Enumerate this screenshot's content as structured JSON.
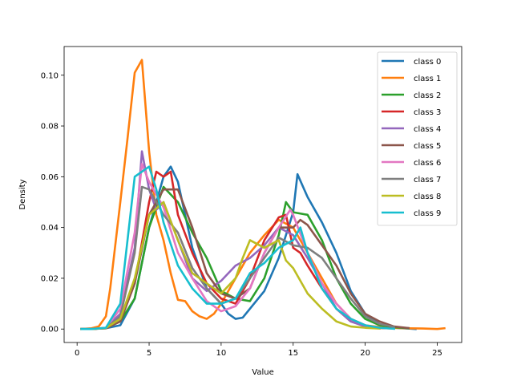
{
  "chart_data": {
    "type": "line",
    "title": "",
    "xlabel": "Value",
    "ylabel": "Density",
    "xlim": [
      -0.9,
      26.7
    ],
    "ylim": [
      -0.0053,
      0.1113
    ],
    "xticks": [
      0,
      5,
      10,
      15,
      20,
      25
    ],
    "yticks": [
      0.0,
      0.02,
      0.04,
      0.06,
      0.08,
      0.1
    ],
    "ytick_labels": [
      "0.00",
      "0.02",
      "0.04",
      "0.06",
      "0.08",
      "0.10"
    ],
    "grid": false,
    "legend_position": "top-right",
    "series": [
      {
        "name": "class 0",
        "color": "#1f77b4",
        "points": [
          [
            0.3,
            0.0
          ],
          [
            1,
            0.0
          ],
          [
            2,
            0.0003
          ],
          [
            3,
            0.0015
          ],
          [
            4,
            0.012
          ],
          [
            5,
            0.04
          ],
          [
            6,
            0.06
          ],
          [
            6.5,
            0.064
          ],
          [
            7,
            0.058
          ],
          [
            8,
            0.032
          ],
          [
            9,
            0.016
          ],
          [
            10,
            0.01
          ],
          [
            10.5,
            0.006
          ],
          [
            11,
            0.004
          ],
          [
            11.5,
            0.0045
          ],
          [
            12,
            0.008
          ],
          [
            13,
            0.015
          ],
          [
            14,
            0.028
          ],
          [
            15,
            0.046
          ],
          [
            15.3,
            0.061
          ],
          [
            16,
            0.052
          ],
          [
            17,
            0.042
          ],
          [
            18,
            0.03
          ],
          [
            19,
            0.015
          ],
          [
            20,
            0.006
          ],
          [
            21,
            0.002
          ],
          [
            22,
            0.0005
          ],
          [
            23,
            0.0002
          ],
          [
            23.5,
            0.0
          ]
        ]
      },
      {
        "name": "class 1",
        "color": "#ff7f0e",
        "points": [
          [
            0.3,
            0.0
          ],
          [
            1,
            0.0003
          ],
          [
            1.5,
            0.001
          ],
          [
            2,
            0.005
          ],
          [
            2.3,
            0.016
          ],
          [
            3,
            0.05
          ],
          [
            3.5,
            0.075
          ],
          [
            4,
            0.101
          ],
          [
            4.5,
            0.106
          ],
          [
            5,
            0.07
          ],
          [
            5.5,
            0.045
          ],
          [
            6,
            0.035
          ],
          [
            6.5,
            0.022
          ],
          [
            7,
            0.0115
          ],
          [
            7.5,
            0.011
          ],
          [
            8,
            0.007
          ],
          [
            8.5,
            0.005
          ],
          [
            9,
            0.004
          ],
          [
            9.5,
            0.006
          ],
          [
            10,
            0.01
          ],
          [
            11,
            0.02
          ],
          [
            12,
            0.03
          ],
          [
            13,
            0.037
          ],
          [
            14,
            0.043
          ],
          [
            15,
            0.04
          ],
          [
            16,
            0.03
          ],
          [
            17,
            0.02
          ],
          [
            18,
            0.01
          ],
          [
            19,
            0.004
          ],
          [
            20,
            0.0015
          ],
          [
            21,
            0.0008
          ],
          [
            22,
            0.0005
          ],
          [
            23,
            0.0003
          ],
          [
            24,
            0.0002
          ],
          [
            25,
            0.0
          ],
          [
            25.5,
            0.0003
          ]
        ]
      },
      {
        "name": "class 2",
        "color": "#2ca02c",
        "points": [
          [
            0.3,
            0.0
          ],
          [
            1,
            0.0
          ],
          [
            2,
            0.0004
          ],
          [
            3,
            0.003
          ],
          [
            4,
            0.012
          ],
          [
            5,
            0.04
          ],
          [
            6,
            0.056
          ],
          [
            7,
            0.05
          ],
          [
            8,
            0.038
          ],
          [
            9,
            0.028
          ],
          [
            10,
            0.015
          ],
          [
            11,
            0.012
          ],
          [
            12,
            0.011
          ],
          [
            13,
            0.02
          ],
          [
            14,
            0.037
          ],
          [
            14.5,
            0.05
          ],
          [
            15,
            0.046
          ],
          [
            16,
            0.045
          ],
          [
            17,
            0.035
          ],
          [
            18,
            0.02
          ],
          [
            19,
            0.01
          ],
          [
            20,
            0.004
          ],
          [
            21,
            0.0015
          ],
          [
            22,
            0.0007
          ],
          [
            23,
            0.0003
          ]
        ]
      },
      {
        "name": "class 3",
        "color": "#d62728",
        "points": [
          [
            0.3,
            0.0
          ],
          [
            1,
            0.0
          ],
          [
            2,
            0.0004
          ],
          [
            3,
            0.003
          ],
          [
            4,
            0.018
          ],
          [
            5,
            0.05
          ],
          [
            5.5,
            0.062
          ],
          [
            6,
            0.06
          ],
          [
            6.5,
            0.062
          ],
          [
            7,
            0.045
          ],
          [
            8,
            0.03
          ],
          [
            9,
            0.018
          ],
          [
            10,
            0.012
          ],
          [
            11,
            0.01
          ],
          [
            12,
            0.02
          ],
          [
            13,
            0.035
          ],
          [
            14,
            0.044
          ],
          [
            14.5,
            0.045
          ],
          [
            15,
            0.032
          ],
          [
            15.5,
            0.03
          ],
          [
            16,
            0.025
          ],
          [
            17,
            0.016
          ],
          [
            18,
            0.008
          ],
          [
            19,
            0.003
          ],
          [
            20,
            0.0012
          ],
          [
            21,
            0.0004
          ],
          [
            22,
            0.0002
          ]
        ]
      },
      {
        "name": "class 4",
        "color": "#9467bd",
        "points": [
          [
            0.3,
            0.0
          ],
          [
            1,
            0.0
          ],
          [
            2,
            0.0005
          ],
          [
            3,
            0.006
          ],
          [
            4,
            0.032
          ],
          [
            4.5,
            0.07
          ],
          [
            5,
            0.055
          ],
          [
            5.5,
            0.047
          ],
          [
            6,
            0.05
          ],
          [
            7,
            0.035
          ],
          [
            8,
            0.02
          ],
          [
            9,
            0.015
          ],
          [
            10,
            0.019
          ],
          [
            11,
            0.025
          ],
          [
            12,
            0.028
          ],
          [
            13,
            0.033
          ],
          [
            14,
            0.04
          ],
          [
            15,
            0.037
          ],
          [
            16,
            0.028
          ],
          [
            17,
            0.018
          ],
          [
            18,
            0.008
          ],
          [
            19,
            0.003
          ],
          [
            20,
            0.001
          ],
          [
            21,
            0.0004
          ]
        ]
      },
      {
        "name": "class 5",
        "color": "#8c564b",
        "points": [
          [
            0.3,
            0.0
          ],
          [
            1,
            0.0
          ],
          [
            2,
            0.0003
          ],
          [
            3,
            0.003
          ],
          [
            4,
            0.018
          ],
          [
            5,
            0.045
          ],
          [
            6,
            0.055
          ],
          [
            7,
            0.055
          ],
          [
            8,
            0.04
          ],
          [
            9,
            0.022
          ],
          [
            10,
            0.014
          ],
          [
            11,
            0.012
          ],
          [
            12,
            0.016
          ],
          [
            13,
            0.03
          ],
          [
            14,
            0.04
          ],
          [
            15,
            0.04
          ],
          [
            15.5,
            0.043
          ],
          [
            16,
            0.041
          ],
          [
            17,
            0.033
          ],
          [
            18,
            0.025
          ],
          [
            19,
            0.014
          ],
          [
            20,
            0.006
          ],
          [
            21,
            0.003
          ],
          [
            22,
            0.001
          ],
          [
            23,
            0.0004
          ]
        ]
      },
      {
        "name": "class 6",
        "color": "#e377c2",
        "points": [
          [
            0.3,
            0.0
          ],
          [
            1,
            0.0
          ],
          [
            2,
            0.0005
          ],
          [
            3,
            0.008
          ],
          [
            4,
            0.038
          ],
          [
            4.5,
            0.065
          ],
          [
            5,
            0.058
          ],
          [
            6,
            0.048
          ],
          [
            7,
            0.03
          ],
          [
            8,
            0.02
          ],
          [
            9,
            0.011
          ],
          [
            10,
            0.007
          ],
          [
            11,
            0.009
          ],
          [
            12,
            0.016
          ],
          [
            13,
            0.03
          ],
          [
            14,
            0.04
          ],
          [
            14.8,
            0.047
          ],
          [
            15,
            0.045
          ],
          [
            16,
            0.03
          ],
          [
            17,
            0.018
          ],
          [
            18,
            0.01
          ],
          [
            19,
            0.004
          ],
          [
            20,
            0.0015
          ],
          [
            21,
            0.0005
          ]
        ]
      },
      {
        "name": "class 7",
        "color": "#7f7f7f",
        "points": [
          [
            0.3,
            0.0
          ],
          [
            1,
            0.0
          ],
          [
            2,
            0.0004
          ],
          [
            3,
            0.005
          ],
          [
            4,
            0.03
          ],
          [
            4.5,
            0.056
          ],
          [
            5,
            0.055
          ],
          [
            6,
            0.045
          ],
          [
            7,
            0.038
          ],
          [
            8,
            0.024
          ],
          [
            9,
            0.016
          ],
          [
            10,
            0.01
          ],
          [
            11,
            0.012
          ],
          [
            12,
            0.02
          ],
          [
            13,
            0.028
          ],
          [
            14,
            0.036
          ],
          [
            15,
            0.033
          ],
          [
            16,
            0.032
          ],
          [
            17,
            0.028
          ],
          [
            18,
            0.02
          ],
          [
            19,
            0.012
          ],
          [
            20,
            0.005
          ],
          [
            21,
            0.002
          ],
          [
            22,
            0.0008
          ]
        ]
      },
      {
        "name": "class 8",
        "color": "#bcbd22",
        "points": [
          [
            0.3,
            0.0
          ],
          [
            1,
            0.0
          ],
          [
            2,
            0.0004
          ],
          [
            3,
            0.004
          ],
          [
            4,
            0.02
          ],
          [
            5,
            0.045
          ],
          [
            6,
            0.05
          ],
          [
            7,
            0.035
          ],
          [
            8,
            0.022
          ],
          [
            9,
            0.018
          ],
          [
            10,
            0.014
          ],
          [
            11,
            0.02
          ],
          [
            11.5,
            0.028
          ],
          [
            12,
            0.035
          ],
          [
            13,
            0.032
          ],
          [
            14,
            0.035
          ],
          [
            14.5,
            0.027
          ],
          [
            15,
            0.024
          ],
          [
            16,
            0.014
          ],
          [
            17,
            0.008
          ],
          [
            18,
            0.003
          ],
          [
            19,
            0.001
          ],
          [
            20,
            0.0005
          ],
          [
            21,
            0.0002
          ]
        ]
      },
      {
        "name": "class 9",
        "color": "#17becf",
        "points": [
          [
            0.3,
            0.0
          ],
          [
            1,
            0.0
          ],
          [
            2,
            0.0005
          ],
          [
            3,
            0.01
          ],
          [
            4,
            0.06
          ],
          [
            5,
            0.064
          ],
          [
            5.5,
            0.055
          ],
          [
            6,
            0.042
          ],
          [
            7,
            0.025
          ],
          [
            8,
            0.016
          ],
          [
            9,
            0.01
          ],
          [
            10,
            0.01
          ],
          [
            11,
            0.012
          ],
          [
            12,
            0.022
          ],
          [
            13,
            0.026
          ],
          [
            14,
            0.032
          ],
          [
            15,
            0.035
          ],
          [
            15.5,
            0.04
          ],
          [
            16,
            0.03
          ],
          [
            17,
            0.016
          ],
          [
            18,
            0.008
          ],
          [
            19,
            0.004
          ],
          [
            20,
            0.0015
          ],
          [
            21,
            0.0005
          ],
          [
            22,
            0.0001
          ]
        ]
      }
    ]
  }
}
